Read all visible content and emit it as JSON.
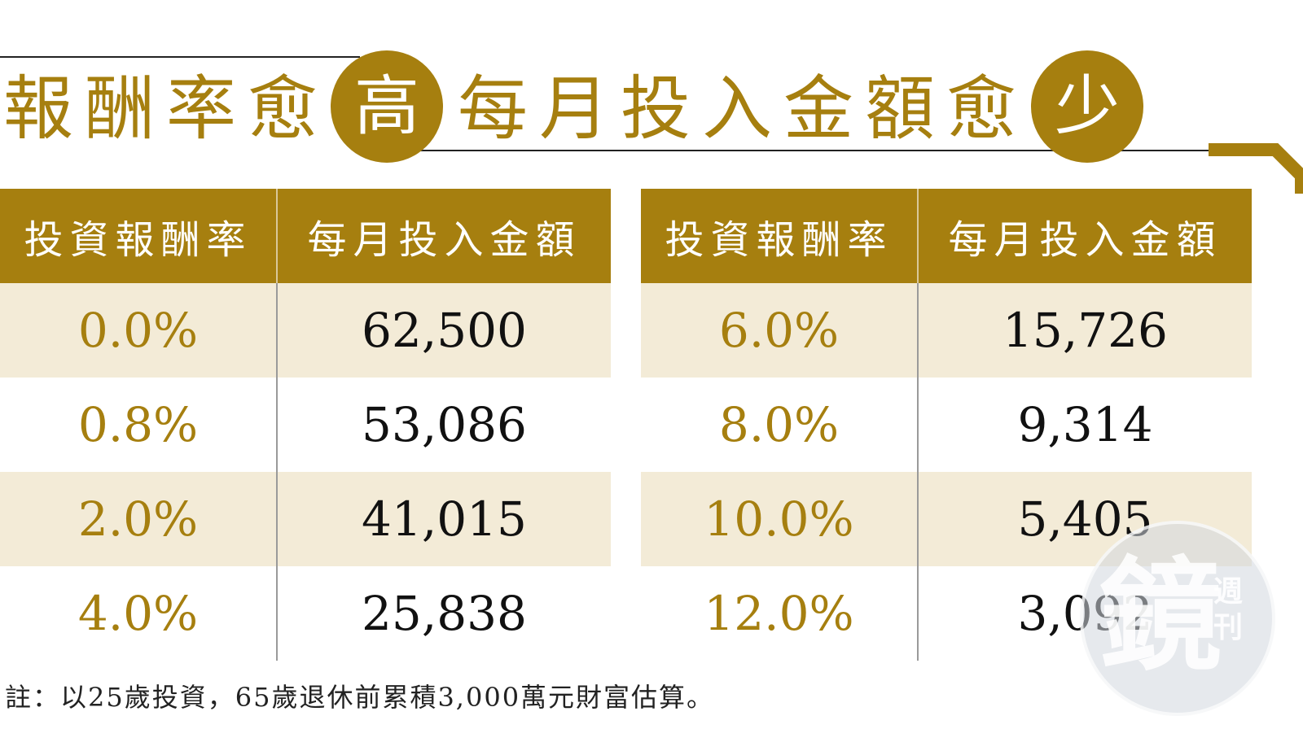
{
  "title": {
    "part1": "報酬率愈",
    "circle1": "高",
    "part2": "每月投入金額愈",
    "circle2": "少"
  },
  "colors": {
    "gold": "#a67f0f",
    "row_shade": "#f3ebd7",
    "text": "#111111"
  },
  "tables": [
    {
      "headers": [
        "投資報酬率",
        "每月投入金額"
      ],
      "rows": [
        {
          "rate": "0.0%",
          "amount": "62,500"
        },
        {
          "rate": "0.8%",
          "amount": "53,086"
        },
        {
          "rate": "2.0%",
          "amount": "41,015"
        },
        {
          "rate": "4.0%",
          "amount": "25,838"
        }
      ]
    },
    {
      "headers": [
        "投資報酬率",
        "每月投入金額"
      ],
      "rows": [
        {
          "rate": "6.0%",
          "amount": "15,726"
        },
        {
          "rate": "8.0%",
          "amount": "9,314"
        },
        {
          "rate": "10.0%",
          "amount": "5,405"
        },
        {
          "rate": "12.0%",
          "amount": "3,092"
        }
      ]
    }
  ],
  "note": "註：以25歲投資，65歲退休前累積3,000萬元財富估算。",
  "watermark": {
    "main": "鏡",
    "side": "週刊"
  }
}
